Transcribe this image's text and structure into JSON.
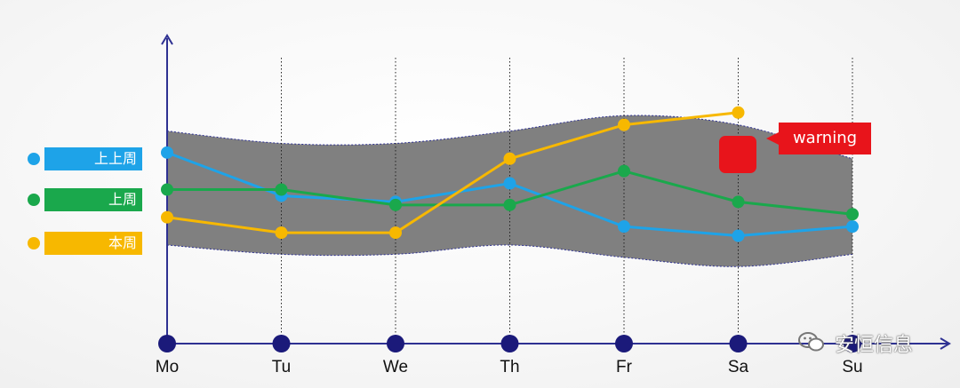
{
  "chart_data": {
    "type": "line",
    "categories": [
      "Mo",
      "Tu",
      "We",
      "Th",
      "Fr",
      "Sa",
      "Su"
    ],
    "series": [
      {
        "name": "上上周",
        "color": "#1ea3e8",
        "values": [
          0.62,
          0.48,
          0.46,
          0.52,
          0.38,
          0.35,
          0.38
        ]
      },
      {
        "name": "上周",
        "color": "#1aa84c",
        "values": [
          0.5,
          0.5,
          0.45,
          0.45,
          0.56,
          0.46,
          0.42
        ]
      },
      {
        "name": "本周",
        "color": "#f7b800",
        "values": [
          0.41,
          0.36,
          0.36,
          0.6,
          0.71,
          0.75,
          null
        ]
      }
    ],
    "band": {
      "name": "normal-range",
      "upper": [
        0.69,
        0.65,
        0.65,
        0.69,
        0.74,
        0.71,
        0.6
      ],
      "lower": [
        0.32,
        0.29,
        0.29,
        0.32,
        0.28,
        0.25,
        0.29
      ]
    },
    "ylim": [
      0,
      1
    ],
    "grid": "vertical-dotted",
    "legend": "left",
    "annotation": {
      "text": "warning",
      "category": "Sa",
      "series": "本周"
    }
  },
  "legend_items": [
    {
      "label": "上上周",
      "color": "#1ea3e8"
    },
    {
      "label": "上周",
      "color": "#1aa84c"
    },
    {
      "label": "本周",
      "color": "#f7b800"
    }
  ],
  "warning_label": "warning",
  "watermark": "安恒信息",
  "colors": {
    "axis": "#2e3192",
    "band": "#808080",
    "warning": "#e8141b"
  }
}
